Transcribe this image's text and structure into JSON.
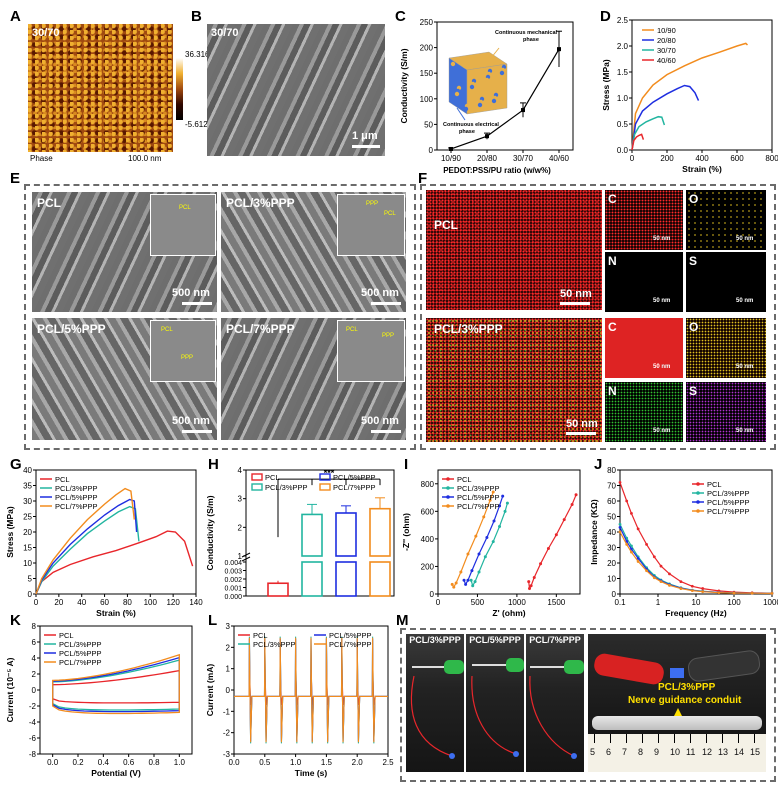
{
  "panels": {
    "A": {
      "letter": "A",
      "sample": "30/70",
      "mode": "Phase",
      "scale": "100.0 nm",
      "cbar_max": "36.316",
      "cbar_min": "-5.612"
    },
    "B": {
      "letter": "B",
      "sample": "30/70",
      "scale": "1 μm"
    },
    "C": {
      "letter": "C",
      "ylabel": "Conductivity (S/m)",
      "xlabel": "PEDOT:PSS/PU ratio (w/w%)",
      "label_mech": "Continuous mechanical phase",
      "label_elec": "Continuous electrical phase"
    },
    "D": {
      "letter": "D",
      "ylabel": "Stress (MPa)",
      "xlabel": "Strain (%)"
    },
    "E": {
      "letter": "E",
      "tiles": [
        {
          "name": "PCL",
          "scale": "500 nm",
          "tags": [
            "PCL"
          ]
        },
        {
          "name": "PCL/3%PPP",
          "scale": "500 nm",
          "tags": [
            "PPP",
            "PCL"
          ]
        },
        {
          "name": "PCL/5%PPP",
          "scale": "500 nm",
          "tags": [
            "PCL",
            "PPP"
          ]
        },
        {
          "name": "PCL/7%PPP",
          "scale": "500 nm",
          "tags": [
            "PCL",
            "PPP"
          ]
        }
      ]
    },
    "F": {
      "letter": "F",
      "rows": [
        {
          "name": "PCL",
          "scale": "50 nm",
          "elements": [
            "C",
            "O",
            "N",
            "S"
          ]
        },
        {
          "name": "PCL/3%PPP",
          "scale": "50 nm",
          "elements": [
            "C",
            "O",
            "N",
            "S"
          ]
        }
      ],
      "small_scale": "50 nm"
    },
    "G": {
      "letter": "G",
      "ylabel": "Stress (MPa)",
      "xlabel": "Strain (%)"
    },
    "H": {
      "letter": "H",
      "ylabel": "Conductivity (S/m)",
      "sig": "***"
    },
    "I": {
      "letter": "I",
      "ylabel": "-Z'' (ohm)",
      "xlabel": "Z' (ohm)"
    },
    "J": {
      "letter": "J",
      "ylabel": "Impedance (KΩ)",
      "xlabel": "Frequency (Hz)"
    },
    "K": {
      "letter": "K",
      "ylabel": "Current (10⁻⁵ A)",
      "xlabel": "Potential (V)"
    },
    "L": {
      "letter": "L",
      "ylabel": "Current (mA)",
      "xlabel": "Time (s)"
    },
    "M": {
      "letter": "M",
      "photos": [
        "PCL/3%PPP",
        "PCL/5%PPP",
        "PCL/7%PPP"
      ],
      "conduit_sample": "PCL/3%PPP",
      "conduit_label": "Nerve guidance conduit",
      "ruler": [
        "5",
        "6",
        "7",
        "8",
        "9",
        "10",
        "11",
        "12",
        "13",
        "14",
        "15"
      ]
    }
  },
  "colors": {
    "red": "#e8262b",
    "green": "#22b5a0",
    "blue": "#1e2ee0",
    "orange": "#f28c1e",
    "lightblue": "#35b5e6"
  },
  "chart_data": [
    {
      "id": "C",
      "type": "line",
      "title": "",
      "xlabel": "PEDOT:PSS/PU ratio (w/w%)",
      "ylabel": "Conductivity (S/m)",
      "categories": [
        "10/90",
        "20/80",
        "30/70",
        "40/60"
      ],
      "values": [
        2,
        27,
        78,
        197
      ],
      "errors": [
        2,
        6,
        14,
        35
      ],
      "ylim": [
        0,
        250
      ],
      "yticks": [
        0,
        50,
        100,
        150,
        200,
        250
      ]
    },
    {
      "id": "D",
      "type": "line",
      "xlabel": "Strain (%)",
      "ylabel": "Stress (MPa)",
      "xlim": [
        0,
        800
      ],
      "ylim": [
        0,
        2.5
      ],
      "xticks": [
        0,
        200,
        400,
        600,
        800
      ],
      "yticks": [
        0.0,
        0.5,
        1.0,
        1.5,
        2.0,
        2.5
      ],
      "series": [
        {
          "name": "10/90",
          "color": "#f28c1e",
          "x": [
            0,
            20,
            60,
            120,
            200,
            300,
            400,
            500,
            600,
            650,
            660
          ],
          "y": [
            0,
            0.7,
            1.0,
            1.25,
            1.45,
            1.62,
            1.77,
            1.88,
            2.0,
            2.05,
            2.02
          ]
        },
        {
          "name": "20/80",
          "color": "#1e2ee0",
          "x": [
            0,
            20,
            60,
            120,
            200,
            260,
            300,
            330,
            360,
            380
          ],
          "y": [
            0,
            0.5,
            0.75,
            0.92,
            1.08,
            1.18,
            1.24,
            1.22,
            1.1,
            0.95
          ]
        },
        {
          "name": "30/70",
          "color": "#22b5a0",
          "x": [
            0,
            15,
            40,
            80,
            120,
            150,
            170,
            185
          ],
          "y": [
            0,
            0.3,
            0.45,
            0.54,
            0.6,
            0.64,
            0.63,
            0.48
          ]
        },
        {
          "name": "40/60",
          "color": "#e8262b",
          "x": [
            0,
            10,
            25,
            40,
            55,
            65
          ],
          "y": [
            0,
            0.18,
            0.25,
            0.28,
            0.3,
            0.2
          ]
        }
      ]
    },
    {
      "id": "G",
      "type": "line",
      "xlabel": "Strain (%)",
      "ylabel": "Stress (MPa)",
      "xlim": [
        0,
        140
      ],
      "ylim": [
        0,
        40
      ],
      "xticks": [
        0,
        20,
        40,
        60,
        80,
        100,
        120,
        140
      ],
      "yticks": [
        0,
        5,
        10,
        15,
        20,
        25,
        30,
        35,
        40
      ],
      "series": [
        {
          "name": "PCL",
          "color": "#e8262b",
          "x": [
            0,
            5,
            15,
            30,
            50,
            70,
            90,
            105,
            115,
            122,
            130,
            137
          ],
          "y": [
            0,
            4,
            7,
            9.5,
            12,
            14,
            16.5,
            18.5,
            20.3,
            20,
            17,
            9
          ]
        },
        {
          "name": "PCL/3%PPP",
          "color": "#22b5a0",
          "x": [
            0,
            5,
            15,
            30,
            45,
            60,
            72,
            82,
            87,
            90
          ],
          "y": [
            0,
            4,
            9,
            14.5,
            19.5,
            23.5,
            26.5,
            28.2,
            27.5,
            17
          ]
        },
        {
          "name": "PCL/5%PPP",
          "color": "#1e2ee0",
          "x": [
            0,
            5,
            15,
            30,
            45,
            60,
            72,
            82,
            86,
            88
          ],
          "y": [
            0,
            4.5,
            10,
            16,
            21,
            25.5,
            28.5,
            30.5,
            30,
            20
          ]
        },
        {
          "name": "PCL/7%PPP",
          "color": "#f28c1e",
          "x": [
            0,
            5,
            15,
            30,
            45,
            60,
            70,
            78,
            83,
            86
          ],
          "y": [
            0,
            5,
            11,
            18,
            24,
            29,
            32,
            34,
            33.2,
            24
          ]
        }
      ]
    },
    {
      "id": "H",
      "type": "bar",
      "ylabel": "Conductivity (S/m)",
      "categories": [
        "PCL",
        "PCL/3%PPP",
        "PCL/5%PPP",
        "PCL/7%PPP"
      ],
      "values": [
        0.0015,
        2.45,
        2.5,
        2.65
      ],
      "errors": [
        0.0003,
        0.35,
        0.25,
        0.38
      ],
      "colors": [
        "#e8262b",
        "#22b5a0",
        "#1e2ee0",
        "#f28c1e"
      ],
      "ylim_low": [
        0,
        0.004
      ],
      "ylim_high": [
        1,
        4
      ],
      "yticks_low": [
        0.0,
        0.001,
        0.002,
        0.003,
        0.004
      ],
      "yticks_high": [
        1,
        2,
        3,
        4
      ]
    },
    {
      "id": "I",
      "type": "scatter",
      "xlabel": "Z' (ohm)",
      "ylabel": "-Z'' (ohm)",
      "xlim": [
        0,
        1800
      ],
      "ylim": [
        0,
        900
      ],
      "xticks": [
        0,
        500,
        1000,
        1500
      ],
      "yticks": [
        0,
        200,
        400,
        600,
        800
      ],
      "series": [
        {
          "name": "PCL",
          "color": "#e8262b",
          "x": [
            1150,
            1160,
            1180,
            1220,
            1300,
            1400,
            1500,
            1600,
            1700,
            1750
          ],
          "y": [
            90,
            40,
            60,
            120,
            220,
            330,
            430,
            540,
            650,
            720
          ]
        },
        {
          "name": "PCL/3%PPP",
          "color": "#22b5a0",
          "x": [
            420,
            440,
            470,
            520,
            600,
            700,
            780,
            850,
            880
          ],
          "y": [
            100,
            60,
            90,
            160,
            270,
            380,
            490,
            600,
            660
          ]
        },
        {
          "name": "PCL/5%PPP",
          "color": "#1e2ee0",
          "x": [
            330,
            350,
            380,
            430,
            520,
            620,
            710,
            780,
            820
          ],
          "y": [
            100,
            70,
            100,
            170,
            290,
            410,
            530,
            640,
            710
          ]
        },
        {
          "name": "PCL/7%PPP",
          "color": "#f28c1e",
          "x": [
            180,
            200,
            230,
            290,
            380,
            480,
            580,
            660,
            700
          ],
          "y": [
            70,
            50,
            80,
            160,
            290,
            420,
            560,
            680,
            740
          ]
        }
      ]
    },
    {
      "id": "J",
      "type": "line",
      "xlabel": "Frequency (Hz)",
      "ylabel": "Impedance (KΩ)",
      "xscale": "log",
      "xlim": [
        0.1,
        1000
      ],
      "ylim": [
        0,
        80
      ],
      "xticks": [
        "0.1",
        "1",
        "10",
        "100",
        "1000"
      ],
      "yticks": [
        0,
        10,
        20,
        30,
        40,
        50,
        60,
        70,
        80
      ],
      "series": [
        {
          "name": "PCL",
          "color": "#e8262b",
          "x": [
            0.1,
            0.15,
            0.2,
            0.3,
            0.5,
            0.8,
            1.2,
            2,
            4,
            8,
            15,
            40,
            100,
            300,
            1000
          ],
          "y": [
            72,
            60,
            52,
            42,
            32,
            24,
            18,
            13,
            8,
            5,
            3.5,
            2,
            1.2,
            0.8,
            0.5
          ]
        },
        {
          "name": "PCL/3%PPP",
          "color": "#22b5a0",
          "x": [
            0.1,
            0.15,
            0.2,
            0.3,
            0.5,
            0.8,
            1.2,
            2,
            4,
            8,
            15,
            40,
            100,
            300,
            1000
          ],
          "y": [
            45,
            36,
            31,
            24,
            17,
            12,
            9,
            6.5,
            4,
            2.5,
            1.8,
            1,
            0.7,
            0.5,
            0.4
          ]
        },
        {
          "name": "PCL/5%PPP",
          "color": "#1e2ee0",
          "x": [
            0.1,
            0.15,
            0.2,
            0.3,
            0.5,
            0.8,
            1.2,
            2,
            4,
            8,
            15,
            40,
            100,
            300,
            1000
          ],
          "y": [
            43,
            34,
            29,
            23,
            16,
            11,
            8.5,
            6,
            3.8,
            2.3,
            1.6,
            1,
            0.6,
            0.5,
            0.4
          ]
        },
        {
          "name": "PCL/7%PPP",
          "color": "#f28c1e",
          "x": [
            0.1,
            0.15,
            0.2,
            0.3,
            0.5,
            0.8,
            1.2,
            2,
            4,
            8,
            15,
            40,
            100,
            300,
            1000
          ],
          "y": [
            40,
            32,
            27,
            21,
            15,
            10.5,
            8,
            5.6,
            3.5,
            2.2,
            1.5,
            0.9,
            0.6,
            0.5,
            0.4
          ]
        }
      ]
    },
    {
      "id": "K",
      "type": "line",
      "xlabel": "Potential (V)",
      "ylabel": "Current (10⁻⁵ A)",
      "xlim": [
        -0.1,
        1.1
      ],
      "ylim": [
        -8,
        8
      ],
      "xticks": [
        0.0,
        0.2,
        0.4,
        0.6,
        0.8,
        1.0
      ],
      "yticks": [
        -8,
        -6,
        -4,
        -2,
        0,
        2,
        4,
        6,
        8
      ],
      "series": [
        {
          "name": "PCL",
          "color": "#e8262b",
          "scale": 0.55
        },
        {
          "name": "PCL/3%PPP",
          "color": "#22b5a0",
          "scale": 0.85
        },
        {
          "name": "PCL/5%PPP",
          "color": "#1e2ee0",
          "scale": 0.92
        },
        {
          "name": "PCL/7%PPP",
          "color": "#f28c1e",
          "scale": 1.0
        }
      ]
    },
    {
      "id": "L",
      "type": "line",
      "xlabel": "Time (s)",
      "ylabel": "Current (mA)",
      "xlim": [
        0,
        2.5
      ],
      "ylim": [
        -3,
        3
      ],
      "xticks": [
        0.0,
        0.5,
        1.0,
        1.5,
        2.0,
        2.5
      ],
      "yticks": [
        -3,
        -2,
        -1,
        0,
        1,
        2,
        3
      ],
      "pulses": [
        0.25,
        0.5,
        0.75,
        1.0,
        1.25,
        1.5,
        1.75,
        2.0,
        2.25
      ],
      "series": [
        {
          "name": "PCL",
          "color": "#e8262b",
          "amp": 0.7
        },
        {
          "name": "PCL/3%PPP",
          "color": "#22b5a0",
          "amp": 2.5
        },
        {
          "name": "PCL/5%PPP",
          "color": "#1e2ee0",
          "amp": 2.4
        },
        {
          "name": "PCL/7%PPP",
          "color": "#f28c1e",
          "amp": 2.45
        }
      ]
    }
  ]
}
